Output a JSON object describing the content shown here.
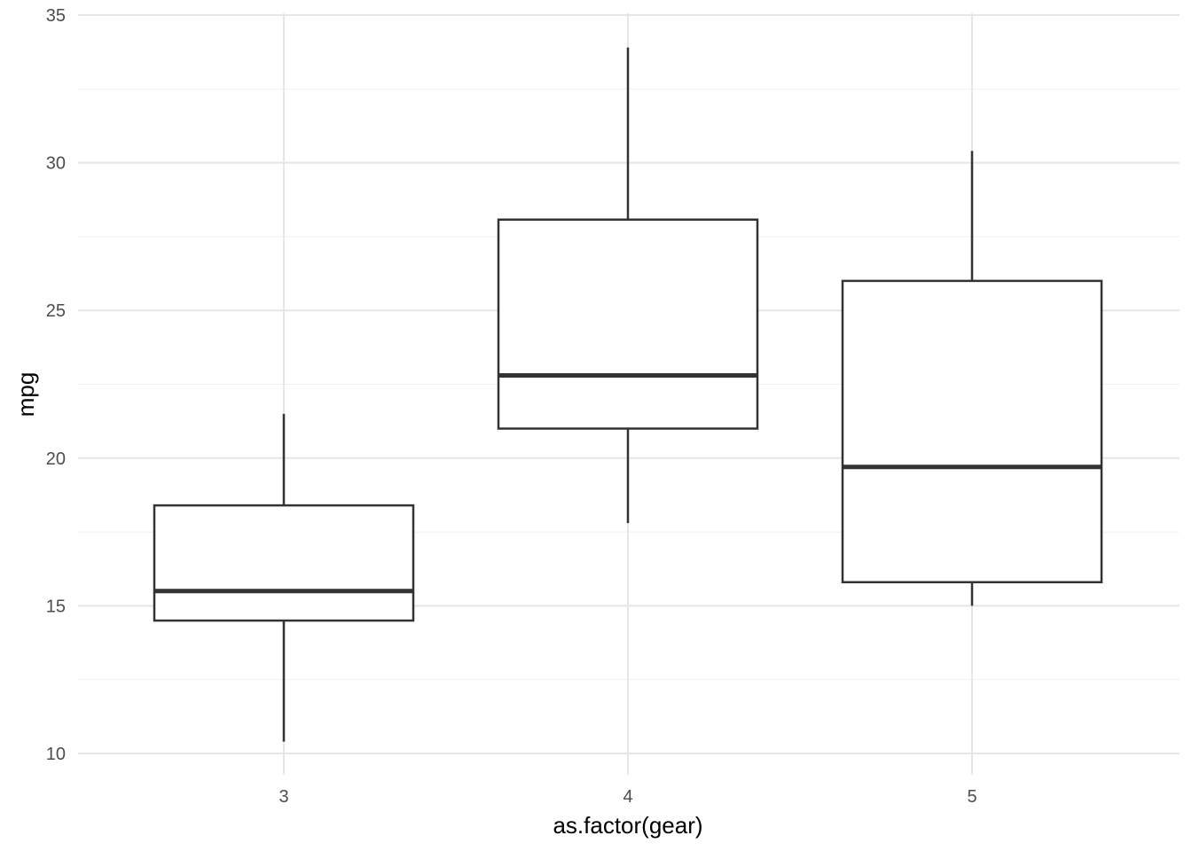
{
  "chart_data": {
    "type": "boxplot",
    "xlabel": "as.factor(gear)",
    "ylabel": "mpg",
    "categories": [
      "3",
      "4",
      "5"
    ],
    "boxes": [
      {
        "category": "3",
        "min": 10.4,
        "q1": 14.5,
        "median": 15.5,
        "q3": 18.4,
        "max": 21.5
      },
      {
        "category": "4",
        "min": 17.8,
        "q1": 21.0,
        "median": 22.8,
        "q3": 28.075,
        "max": 33.9
      },
      {
        "category": "5",
        "min": 15.0,
        "q1": 15.8,
        "median": 19.7,
        "q3": 26.0,
        "max": 30.4
      }
    ],
    "ylim": [
      10,
      35
    ],
    "y_ticks": [
      "10",
      "15",
      "20",
      "25",
      "30",
      "35"
    ],
    "x_ticks": [
      "3",
      "4",
      "5"
    ],
    "grid": true,
    "legend": "none",
    "colors": {
      "box_outline": "#333333",
      "box_fill": "#ffffff",
      "grid": "#e6e6e6",
      "tick_text": "#4d4d4d"
    }
  }
}
